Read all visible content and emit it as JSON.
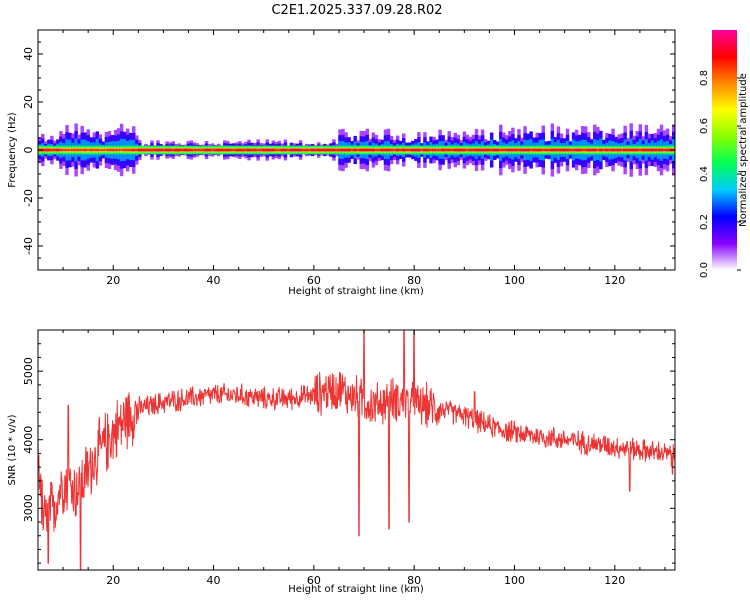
{
  "figure_title": "C2E1.2025.337.09.28.R02",
  "colors": {
    "snr_line": "#ee3333",
    "frame": "#000000",
    "colormap": [
      "#ffffff",
      "#8800ff",
      "#0000ff",
      "#00ccff",
      "#00ff55",
      "#88ff00",
      "#ffff00",
      "#ff8800",
      "#ff0000",
      "#ff0099"
    ]
  },
  "chart_data": [
    {
      "type": "heatmap",
      "title": "",
      "xlabel": "Height of straight line (km)",
      "ylabel": "Frequency (Hz)",
      "xlim": [
        5,
        132
      ],
      "ylim": [
        -50,
        50
      ],
      "xticks": [
        20,
        40,
        60,
        80,
        100,
        120
      ],
      "yticks": [
        40,
        20,
        0,
        -20,
        -40
      ],
      "colorbar": {
        "label": "Normalized spectral amplitude",
        "range": [
          0,
          1
        ],
        "ticks": [
          "0.0",
          "0.2",
          "0.4",
          "0.6",
          "0.8"
        ]
      },
      "band": {
        "center_frequency_hz": 0,
        "description_segments": [
          {
            "x_start": 5,
            "x_end": 9,
            "peak_amplitude": 0.95,
            "halfwidth_hz": 3
          },
          {
            "x_start": 9,
            "x_end": 25,
            "peak_amplitude": 0.85,
            "halfwidth_hz": 5
          },
          {
            "x_start": 25,
            "x_end": 65,
            "peak_amplitude": 0.95,
            "halfwidth_hz": 2
          },
          {
            "x_start": 65,
            "x_end": 95,
            "peak_amplitude": 0.95,
            "halfwidth_hz": 4
          },
          {
            "x_start": 95,
            "x_end": 132,
            "peak_amplitude": 0.95,
            "halfwidth_hz": 5
          }
        ]
      }
    },
    {
      "type": "line",
      "title": "",
      "xlabel": "Height of straight line (km)",
      "ylabel": "SNR (10 * v/v)",
      "xlim": [
        5,
        132
      ],
      "ylim": [
        2100,
        5600
      ],
      "xticks": [
        20,
        40,
        60,
        80,
        100,
        120
      ],
      "yticks": [
        3000,
        4000,
        5000
      ],
      "series": [
        {
          "trend_x": [
            5,
            6,
            8,
            10,
            13,
            16,
            18,
            20,
            23,
            25,
            28,
            30,
            35,
            40,
            45,
            50,
            55,
            60,
            62,
            65,
            67,
            69,
            70,
            72,
            74,
            76,
            78,
            80,
            82,
            85,
            90,
            95,
            100,
            105,
            110,
            115,
            120,
            125,
            130,
            132
          ],
          "trend_y": [
            3900,
            2800,
            3000,
            3400,
            3250,
            3700,
            3900,
            4100,
            4350,
            4450,
            4500,
            4550,
            4600,
            4650,
            4650,
            4600,
            4600,
            4650,
            4700,
            4750,
            4650,
            4600,
            4550,
            4500,
            4550,
            4600,
            4550,
            4500,
            4500,
            4450,
            4350,
            4200,
            4100,
            4050,
            4000,
            3950,
            3900,
            3850,
            3800,
            3750
          ],
          "excursions": [
            {
              "x": 7,
              "y": 2200
            },
            {
              "x": 13.5,
              "y": 2100
            },
            {
              "x": 11,
              "y": 4500
            },
            {
              "x": 69,
              "y": 2600
            },
            {
              "x": 70,
              "y": 5600
            },
            {
              "x": 75,
              "y": 2700
            },
            {
              "x": 78,
              "y": 5600
            },
            {
              "x": 79,
              "y": 2800
            },
            {
              "x": 80,
              "y": 5600
            },
            {
              "x": 92,
              "y": 4700
            },
            {
              "x": 123,
              "y": 3250
            },
            {
              "x": 131.5,
              "y": 3500
            }
          ]
        }
      ]
    }
  ]
}
